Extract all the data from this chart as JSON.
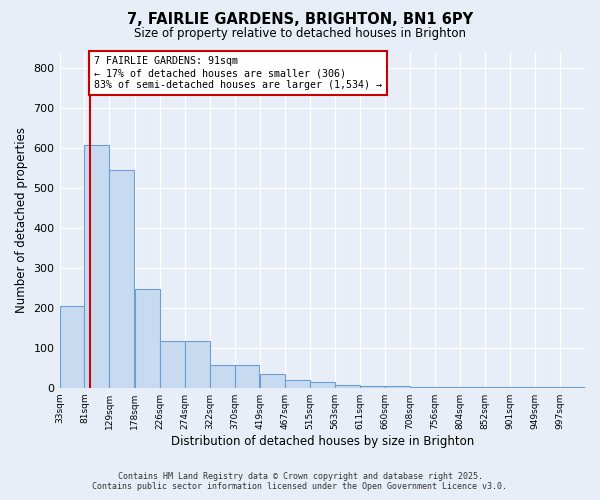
{
  "title_line1": "7, FAIRLIE GARDENS, BRIGHTON, BN1 6PY",
  "title_line2": "Size of property relative to detached houses in Brighton",
  "xlabel": "Distribution of detached houses by size in Brighton",
  "ylabel": "Number of detached properties",
  "bins": [
    "33sqm",
    "81sqm",
    "129sqm",
    "178sqm",
    "226sqm",
    "274sqm",
    "322sqm",
    "370sqm",
    "419sqm",
    "467sqm",
    "515sqm",
    "563sqm",
    "611sqm",
    "660sqm",
    "708sqm",
    "756sqm",
    "804sqm",
    "852sqm",
    "901sqm",
    "949sqm",
    "997sqm"
  ],
  "bin_left_edges": [
    33,
    81,
    129,
    178,
    226,
    274,
    322,
    370,
    419,
    467,
    515,
    563,
    611,
    660,
    708,
    756,
    804,
    852,
    901,
    949,
    997
  ],
  "bin_width": 48,
  "bar_heights": [
    205,
    608,
    545,
    248,
    118,
    118,
    58,
    58,
    35,
    20,
    15,
    8,
    5,
    4,
    3,
    2,
    2,
    1,
    1,
    2,
    1
  ],
  "bar_color": "#c8daf0",
  "bar_edge_color": "#6b9fd4",
  "property_size": 91,
  "property_line_color": "#cc0000",
  "annotation_text": "7 FAIRLIE GARDENS: 91sqm\n← 17% of detached houses are smaller (306)\n83% of semi-detached houses are larger (1,534) →",
  "annotation_box_facecolor": "#ffffff",
  "annotation_box_edgecolor": "#cc0000",
  "ylim": [
    0,
    840
  ],
  "ytick_interval": 100,
  "background_color": "#e8eef8",
  "plot_bg_color": "#e8eef8",
  "grid_color": "#ffffff",
  "grid_linewidth": 1.0,
  "footer_line1": "Contains HM Land Registry data © Crown copyright and database right 2025.",
  "footer_line2": "Contains public sector information licensed under the Open Government Licence v3.0."
}
